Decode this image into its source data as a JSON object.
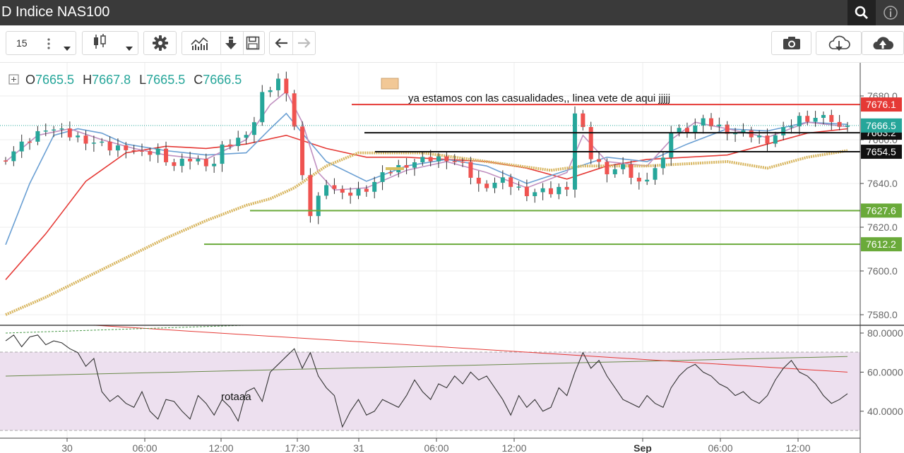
{
  "window": {
    "title": "D Indice NAS100"
  },
  "toolbar": {
    "interval_label": "15"
  },
  "legend": {
    "o_label": "O",
    "o_value": "7665.5",
    "h_label": "H",
    "h_value": "7667.8",
    "l_label": "L",
    "l_value": "7665.5",
    "c_label": "C",
    "c_value": "7666.5"
  },
  "annotations": {
    "note1": "ya estamos con las casualidades,, linea vete de aqui jjjjj",
    "note2": "rotaaa"
  },
  "colors": {
    "up": "#26a69a",
    "down": "#ef5350",
    "ma_red": "#e53935",
    "ma_blue": "#6a9fd3",
    "ma_violet": "#c090c0",
    "ma_gold": "#d8b660",
    "support": "#6aaa3a",
    "resistance": "#e53935",
    "level_black": "#111111",
    "rsi_band": "#ede0ef"
  },
  "chart_data": [
    {
      "type": "candlestick",
      "title": "D Indice NAS100",
      "yticks": [
        "7680.0",
        "7660.0",
        "7640.0",
        "7620.0",
        "7600.0",
        "7580.0"
      ],
      "ylim": [
        7574,
        7692
      ],
      "xticks": [
        "30",
        "06:00",
        "12:00",
        "17:30",
        "31",
        "06:00",
        "12:00",
        "Sep",
        "06:00",
        "12:00"
      ],
      "last_price": "7666.5",
      "price_labels": [
        {
          "value": 7676.1,
          "text": "7676.1",
          "color": "#e53935"
        },
        {
          "value": 7663.2,
          "text": "7663.2",
          "color": "#111111"
        },
        {
          "value": 7654.5,
          "text": "7654.5",
          "color": "#111111"
        },
        {
          "value": 7627.6,
          "text": "7627.6",
          "color": "#6aaa3a"
        },
        {
          "value": 7612.2,
          "text": "7612.2",
          "color": "#6aaa3a"
        }
      ],
      "horizontal_lines": [
        {
          "value": 7676.1,
          "color": "#e53935"
        },
        {
          "value": 7663.2,
          "color": "#111111"
        },
        {
          "value": 7654.5,
          "color": "#111111"
        },
        {
          "value": 7627.6,
          "color": "#6aaa3a"
        },
        {
          "value": 7612.2,
          "color": "#6aaa3a"
        }
      ],
      "close_path": [
        [
          0,
          7652
        ],
        [
          3,
          7660
        ],
        [
          5,
          7666
        ],
        [
          8,
          7662
        ],
        [
          10,
          7660
        ],
        [
          13,
          7656
        ],
        [
          15,
          7657
        ],
        [
          17,
          7653
        ],
        [
          19,
          7655
        ],
        [
          21,
          7648
        ],
        [
          23,
          7651
        ],
        [
          26,
          7649
        ],
        [
          27,
          7656
        ],
        [
          29,
          7660
        ],
        [
          31,
          7668
        ],
        [
          32,
          7680
        ],
        [
          34,
          7687
        ],
        [
          35,
          7683
        ],
        [
          36,
          7666
        ],
        [
          37,
          7642
        ],
        [
          38,
          7626
        ],
        [
          40,
          7641
        ],
        [
          42,
          7634
        ],
        [
          45,
          7638
        ],
        [
          48,
          7646
        ],
        [
          50,
          7649
        ],
        [
          53,
          7651
        ],
        [
          55,
          7652
        ],
        [
          57,
          7648
        ],
        [
          59,
          7639
        ],
        [
          62,
          7641
        ],
        [
          65,
          7636
        ],
        [
          68,
          7636
        ],
        [
          70,
          7639
        ],
        [
          71,
          7672
        ],
        [
          72,
          7664
        ],
        [
          73,
          7652
        ],
        [
          75,
          7646
        ],
        [
          77,
          7647
        ],
        [
          79,
          7640
        ],
        [
          81,
          7647
        ],
        [
          82,
          7650
        ],
        [
          83,
          7664
        ],
        [
          85,
          7665
        ],
        [
          87,
          7668
        ],
        [
          89,
          7666
        ],
        [
          91,
          7663
        ],
        [
          93,
          7662
        ],
        [
          95,
          7660
        ],
        [
          97,
          7664
        ],
        [
          99,
          7670
        ],
        [
          101,
          7670
        ],
        [
          103,
          7669
        ],
        [
          104,
          7665
        ],
        [
          105,
          7666.5
        ]
      ],
      "series": [
        {
          "name": "",
          "color": "#e53935",
          "points": [
            [
              0,
              7596
            ],
            [
              5,
              7617
            ],
            [
              10,
              7641
            ],
            [
              15,
              7654
            ],
            [
              20,
              7657
            ],
            [
              25,
              7656
            ],
            [
              30,
              7658
            ],
            [
              35,
              7662
            ],
            [
              40,
              7656
            ],
            [
              45,
              7652
            ],
            [
              50,
              7652
            ],
            [
              55,
              7651
            ],
            [
              60,
              7650
            ],
            [
              65,
              7647
            ],
            [
              70,
              7642
            ],
            [
              75,
              7648
            ],
            [
              80,
              7651
            ],
            [
              85,
              7652
            ],
            [
              90,
              7653
            ],
            [
              95,
              7658
            ],
            [
              100,
              7663
            ],
            [
              105,
              7665
            ]
          ]
        },
        {
          "name": "",
          "color": "#6a9fd3",
          "points": [
            [
              0,
              7612
            ],
            [
              3,
              7640
            ],
            [
              6,
              7662
            ],
            [
              9,
              7665
            ],
            [
              12,
              7663
            ],
            [
              15,
              7658
            ],
            [
              20,
              7655
            ],
            [
              25,
              7653
            ],
            [
              30,
              7654
            ],
            [
              33,
              7665
            ],
            [
              35,
              7672
            ],
            [
              37,
              7663
            ],
            [
              40,
              7650
            ],
            [
              45,
              7641
            ],
            [
              50,
              7648
            ],
            [
              55,
              7651
            ],
            [
              60,
              7648
            ],
            [
              65,
              7640
            ],
            [
              70,
              7646
            ],
            [
              75,
              7652
            ],
            [
              80,
              7650
            ],
            [
              85,
              7658
            ],
            [
              90,
              7665
            ],
            [
              95,
              7664
            ],
            [
              100,
              7668
            ],
            [
              105,
              7667
            ]
          ]
        },
        {
          "name": "",
          "color": "#c090c0",
          "points": [
            [
              0,
              7650
            ],
            [
              4,
              7662
            ],
            [
              8,
              7665
            ],
            [
              12,
              7660
            ],
            [
              16,
              7656
            ],
            [
              20,
              7653
            ],
            [
              25,
              7651
            ],
            [
              30,
              7660
            ],
            [
              33,
              7676
            ],
            [
              35,
              7682
            ],
            [
              37,
              7668
            ],
            [
              39,
              7645
            ],
            [
              41,
              7637
            ],
            [
              45,
              7638
            ],
            [
              50,
              7646
            ],
            [
              55,
              7650
            ],
            [
              60,
              7645
            ],
            [
              65,
              7638
            ],
            [
              70,
              7645
            ],
            [
              72,
              7662
            ],
            [
              75,
              7650
            ],
            [
              80,
              7648
            ],
            [
              83,
              7660
            ],
            [
              86,
              7668
            ],
            [
              90,
              7665
            ],
            [
              95,
              7661
            ],
            [
              100,
              7668
            ],
            [
              105,
              7666
            ]
          ]
        },
        {
          "name": "",
          "color": "#d8b660",
          "points": [
            [
              0,
              7580
            ],
            [
              5,
              7588
            ],
            [
              10,
              7597
            ],
            [
              15,
              7606
            ],
            [
              20,
              7615
            ],
            [
              25,
              7623
            ],
            [
              30,
              7630
            ],
            [
              33,
              7633
            ],
            [
              36,
              7638
            ],
            [
              40,
              7648
            ],
            [
              44,
              7654
            ],
            [
              48,
              7654
            ],
            [
              52,
              7654
            ],
            [
              56,
              7652
            ],
            [
              60,
              7650
            ],
            [
              64,
              7648
            ],
            [
              68,
              7646
            ],
            [
              72,
              7648
            ],
            [
              76,
              7648
            ],
            [
              80,
              7648
            ],
            [
              85,
              7649
            ],
            [
              90,
              7650
            ],
            [
              95,
              7647
            ],
            [
              100,
              7652
            ],
            [
              105,
              7655
            ]
          ]
        }
      ]
    },
    {
      "type": "line",
      "title": "",
      "yticks": [
        "80.0000",
        "60.0000",
        "40.0000"
      ],
      "ylim": [
        28,
        85
      ],
      "band": [
        30,
        70
      ],
      "series": [
        {
          "name": "rotaaa",
          "color": "#333333",
          "values": [
            76,
            79,
            73,
            78,
            79,
            74,
            76,
            75,
            72,
            70,
            63,
            67,
            50,
            45,
            48,
            44,
            42,
            50,
            40,
            36,
            46,
            45,
            40,
            36,
            48,
            44,
            38,
            46,
            42,
            35,
            50,
            52,
            45,
            60,
            64,
            68,
            72,
            62,
            70,
            58,
            52,
            48,
            32,
            40,
            46,
            38,
            40,
            46,
            44,
            42,
            48,
            56,
            50,
            46,
            54,
            52,
            58,
            54,
            60,
            56,
            58,
            52,
            46,
            38,
            48,
            42,
            46,
            40,
            42,
            52,
            48,
            60,
            70,
            62,
            66,
            58,
            52,
            46,
            44,
            42,
            48,
            44,
            42,
            52,
            58,
            62,
            64,
            60,
            58,
            54,
            52,
            48,
            50,
            46,
            44,
            48,
            56,
            62,
            66,
            60,
            58,
            54,
            48,
            44,
            46,
            49
          ]
        }
      ],
      "trendlines": [
        {
          "from": [
            0,
            58
          ],
          "to": [
            105,
            68
          ],
          "color": "#6a8a4a"
        },
        {
          "from": [
            11,
            84
          ],
          "to": [
            105,
            60
          ],
          "color": "#e53935"
        },
        {
          "from": [
            0,
            80
          ],
          "to": [
            30,
            84
          ],
          "color": "#4a9a4a",
          "dashed": true
        }
      ]
    }
  ]
}
